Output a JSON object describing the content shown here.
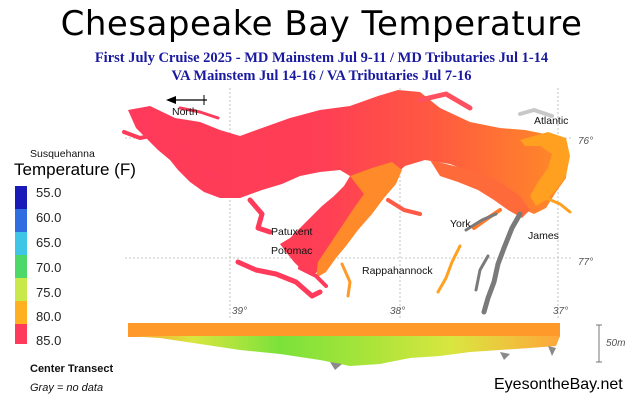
{
  "title": "Chesapeake Bay Temperature",
  "subtitle_line1": "First July Cruise 2025 - MD Mainstem Jul 9-11 / MD Tributaries Jul 1-14",
  "subtitle_line2": "VA Mainstem Jul 14-16 / VA Tributaries Jul 7-16",
  "legend": {
    "title": "Temperature (F)",
    "ticks": [
      "55.0",
      "60.0",
      "65.0",
      "70.0",
      "75.0",
      "80.0",
      "85.0"
    ],
    "colors": [
      "#1a1ab8",
      "#2f6de0",
      "#3fc6e6",
      "#4ed86a",
      "#c9e84a",
      "#ffb020",
      "#ff3a5a"
    ]
  },
  "north_label": "North",
  "places": {
    "susquehanna": "Susquehanna",
    "atlantic": "Atlantic",
    "patuxent": "Patuxent",
    "potomac": "Potomac",
    "york": "York",
    "james": "James",
    "rappahannock": "Rappahannock"
  },
  "coords": {
    "lat76": "76°",
    "lat77": "77°",
    "lon39": "39°",
    "lon38": "38°",
    "lon37": "37°"
  },
  "depth_scale": "50m",
  "center_transect": "Center Transect",
  "gray_note": "Gray = no data",
  "site": "EyesontheBay.net",
  "map_colors": {
    "hot": "#ff3a5a",
    "warm": "#ff7a2a",
    "orange": "#ffa020",
    "no_data": "#7a7a7a",
    "profile_green": "#7be23a",
    "profile_yellow": "#d9e640"
  }
}
